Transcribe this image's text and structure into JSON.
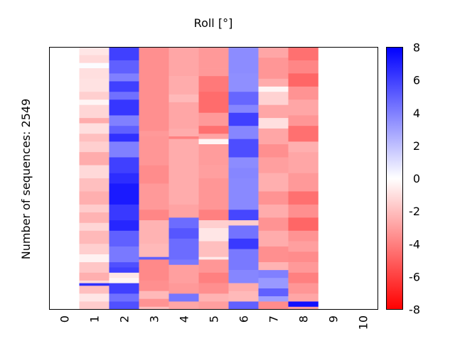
{
  "chart_data": {
    "type": "heatmap",
    "title": "Roll [°]",
    "xlabel": "",
    "ylabel": "Number of sequences: 2549",
    "x_ticks": [
      "0",
      "1",
      "2",
      "3",
      "4",
      "5",
      "6",
      "7",
      "8",
      "9",
      "10"
    ],
    "xlim": [
      -0.5,
      10.5
    ],
    "n_sequences": 2549,
    "colorbar": {
      "colormap": "bwr_reversed",
      "vmin": -8,
      "vmax": 8,
      "ticks": [
        "8",
        "6",
        "4",
        "2",
        "0",
        "-2",
        "-4",
        "-6",
        "-8"
      ],
      "color_low": "#ff0000",
      "color_mid": "#ffffff",
      "color_high": "#0000ff"
    },
    "columns": [
      {
        "x": 1,
        "bands": [
          [
            0.0,
            0.03,
            -0.8
          ],
          [
            0.03,
            0.06,
            -1.2
          ],
          [
            0.06,
            0.08,
            0.1
          ],
          [
            0.08,
            0.12,
            -1.0
          ],
          [
            0.12,
            0.17,
            -0.9
          ],
          [
            0.17,
            0.2,
            -1.5
          ],
          [
            0.2,
            0.22,
            -0.3
          ],
          [
            0.22,
            0.27,
            -1.3
          ],
          [
            0.27,
            0.29,
            -2.6
          ],
          [
            0.29,
            0.33,
            -1.0
          ],
          [
            0.33,
            0.36,
            -2.0
          ],
          [
            0.36,
            0.4,
            -1.5
          ],
          [
            0.4,
            0.45,
            -2.6
          ],
          [
            0.45,
            0.5,
            -1.2
          ],
          [
            0.5,
            0.55,
            -2.0
          ],
          [
            0.55,
            0.6,
            -2.5
          ],
          [
            0.6,
            0.63,
            -1.6
          ],
          [
            0.63,
            0.67,
            -2.4
          ],
          [
            0.67,
            0.7,
            -1.3
          ],
          [
            0.7,
            0.75,
            -2.2
          ],
          [
            0.75,
            0.79,
            -1.5
          ],
          [
            0.79,
            0.82,
            -0.4
          ],
          [
            0.82,
            0.86,
            -1.8
          ],
          [
            0.86,
            0.89,
            -2.5
          ],
          [
            0.89,
            0.9,
            -1.2
          ],
          [
            0.9,
            0.91,
            6.5
          ],
          [
            0.91,
            0.94,
            -2.0
          ],
          [
            0.94,
            0.97,
            -0.8
          ],
          [
            0.97,
            1.0,
            -1.6
          ]
        ]
      },
      {
        "x": 2,
        "bands": [
          [
            0.0,
            0.05,
            6.0
          ],
          [
            0.05,
            0.1,
            5.0
          ],
          [
            0.1,
            0.13,
            4.0
          ],
          [
            0.13,
            0.17,
            6.0
          ],
          [
            0.17,
            0.2,
            4.5
          ],
          [
            0.2,
            0.26,
            6.3
          ],
          [
            0.26,
            0.3,
            4.0
          ],
          [
            0.3,
            0.33,
            5.0
          ],
          [
            0.33,
            0.36,
            6.5
          ],
          [
            0.36,
            0.42,
            4.0
          ],
          [
            0.42,
            0.48,
            6.0
          ],
          [
            0.48,
            0.52,
            6.6
          ],
          [
            0.52,
            0.6,
            7.2
          ],
          [
            0.6,
            0.66,
            6.2
          ],
          [
            0.66,
            0.7,
            6.8
          ],
          [
            0.7,
            0.76,
            5.0
          ],
          [
            0.76,
            0.82,
            4.2
          ],
          [
            0.82,
            0.84,
            5.5
          ],
          [
            0.84,
            0.86,
            6.0
          ],
          [
            0.86,
            0.88,
            -0.8
          ],
          [
            0.88,
            0.9,
            -0.3
          ],
          [
            0.9,
            0.94,
            6.0
          ],
          [
            0.94,
            0.97,
            4.5
          ],
          [
            0.97,
            1.0,
            5.5
          ]
        ]
      },
      {
        "x": 3,
        "bands": [
          [
            0.0,
            0.32,
            -3.5
          ],
          [
            0.32,
            0.34,
            -3.2
          ],
          [
            0.34,
            0.45,
            -3.3
          ],
          [
            0.45,
            0.52,
            -3.6
          ],
          [
            0.52,
            0.62,
            -3.2
          ],
          [
            0.62,
            0.66,
            -3.8
          ],
          [
            0.66,
            0.75,
            -2.4
          ],
          [
            0.75,
            0.8,
            -2.2
          ],
          [
            0.8,
            0.81,
            5.0
          ],
          [
            0.81,
            0.89,
            -3.7
          ],
          [
            0.89,
            0.93,
            -3.5
          ],
          [
            0.93,
            0.96,
            -2.2
          ],
          [
            0.96,
            0.99,
            -3.4
          ],
          [
            0.99,
            1.0,
            -2.0
          ]
        ]
      },
      {
        "x": 4,
        "bands": [
          [
            0.0,
            0.11,
            -2.8
          ],
          [
            0.11,
            0.18,
            -2.6
          ],
          [
            0.18,
            0.21,
            -2.2
          ],
          [
            0.21,
            0.31,
            -2.8
          ],
          [
            0.31,
            0.34,
            -2.6
          ],
          [
            0.34,
            0.35,
            -4.0
          ],
          [
            0.35,
            0.6,
            -2.6
          ],
          [
            0.6,
            0.65,
            -2.9
          ],
          [
            0.65,
            0.69,
            4.6
          ],
          [
            0.69,
            0.73,
            5.3
          ],
          [
            0.73,
            0.81,
            4.6
          ],
          [
            0.81,
            0.83,
            4.2
          ],
          [
            0.83,
            0.9,
            -3.0
          ],
          [
            0.9,
            0.94,
            -3.2
          ],
          [
            0.94,
            0.97,
            4.3
          ],
          [
            0.97,
            1.0,
            -2.8
          ]
        ]
      },
      {
        "x": 5,
        "bands": [
          [
            0.0,
            0.08,
            -3.2
          ],
          [
            0.08,
            0.11,
            -3.2
          ],
          [
            0.11,
            0.17,
            -4.2
          ],
          [
            0.17,
            0.25,
            -4.6
          ],
          [
            0.25,
            0.3,
            -3.2
          ],
          [
            0.3,
            0.33,
            -4.5
          ],
          [
            0.33,
            0.35,
            -2.9
          ],
          [
            0.35,
            0.37,
            -0.3
          ],
          [
            0.37,
            0.45,
            -3.1
          ],
          [
            0.45,
            0.5,
            -3.0
          ],
          [
            0.5,
            0.62,
            -3.3
          ],
          [
            0.62,
            0.66,
            -4.0
          ],
          [
            0.66,
            0.69,
            -1.5
          ],
          [
            0.69,
            0.74,
            -0.8
          ],
          [
            0.74,
            0.8,
            -2.0
          ],
          [
            0.8,
            0.81,
            -0.7
          ],
          [
            0.81,
            0.86,
            -3.3
          ],
          [
            0.86,
            0.9,
            -4.0
          ],
          [
            0.9,
            0.94,
            -3.5
          ],
          [
            0.94,
            0.97,
            -2.4
          ],
          [
            0.97,
            1.0,
            -3.0
          ]
        ]
      },
      {
        "x": 6,
        "bands": [
          [
            0.0,
            0.1,
            3.6
          ],
          [
            0.1,
            0.17,
            3.5
          ],
          [
            0.17,
            0.22,
            4.8
          ],
          [
            0.22,
            0.25,
            3.8
          ],
          [
            0.25,
            0.3,
            6.0
          ],
          [
            0.3,
            0.35,
            3.8
          ],
          [
            0.35,
            0.42,
            5.6
          ],
          [
            0.42,
            0.46,
            3.6
          ],
          [
            0.46,
            0.5,
            3.8
          ],
          [
            0.5,
            0.62,
            3.7
          ],
          [
            0.62,
            0.66,
            5.8
          ],
          [
            0.66,
            0.68,
            -1.6
          ],
          [
            0.68,
            0.73,
            4.4
          ],
          [
            0.73,
            0.77,
            6.2
          ],
          [
            0.77,
            0.85,
            4.2
          ],
          [
            0.85,
            0.9,
            3.8
          ],
          [
            0.9,
            0.93,
            -2.6
          ],
          [
            0.93,
            0.97,
            -2.2
          ],
          [
            0.97,
            1.0,
            5.0
          ]
        ]
      },
      {
        "x": 7,
        "bands": [
          [
            0.0,
            0.04,
            -2.8
          ],
          [
            0.04,
            0.12,
            -3.3
          ],
          [
            0.12,
            0.15,
            -2.6
          ],
          [
            0.15,
            0.17,
            -0.3
          ],
          [
            0.17,
            0.22,
            -1.4
          ],
          [
            0.22,
            0.27,
            -2.8
          ],
          [
            0.27,
            0.31,
            -1.0
          ],
          [
            0.31,
            0.37,
            -2.8
          ],
          [
            0.37,
            0.42,
            -3.5
          ],
          [
            0.42,
            0.48,
            -3.0
          ],
          [
            0.48,
            0.55,
            -2.5
          ],
          [
            0.55,
            0.6,
            -3.4
          ],
          [
            0.6,
            0.65,
            -2.6
          ],
          [
            0.65,
            0.7,
            -3.4
          ],
          [
            0.7,
            0.76,
            -2.6
          ],
          [
            0.76,
            0.82,
            -3.5
          ],
          [
            0.82,
            0.85,
            -2.4
          ],
          [
            0.85,
            0.88,
            4.0
          ],
          [
            0.88,
            0.92,
            3.2
          ],
          [
            0.92,
            0.95,
            5.0
          ],
          [
            0.95,
            0.97,
            3.0
          ],
          [
            0.97,
            1.0,
            -3.6
          ]
        ]
      },
      {
        "x": 8,
        "bands": [
          [
            0.0,
            0.05,
            -4.5
          ],
          [
            0.05,
            0.1,
            -3.8
          ],
          [
            0.1,
            0.15,
            -4.8
          ],
          [
            0.15,
            0.2,
            -3.4
          ],
          [
            0.2,
            0.26,
            -2.8
          ],
          [
            0.26,
            0.3,
            -3.3
          ],
          [
            0.3,
            0.36,
            -4.5
          ],
          [
            0.36,
            0.4,
            -2.5
          ],
          [
            0.4,
            0.48,
            -2.8
          ],
          [
            0.48,
            0.55,
            -3.2
          ],
          [
            0.55,
            0.6,
            -4.5
          ],
          [
            0.6,
            0.65,
            -3.5
          ],
          [
            0.65,
            0.7,
            -4.8
          ],
          [
            0.7,
            0.74,
            -3.4
          ],
          [
            0.74,
            0.78,
            -3.0
          ],
          [
            0.78,
            0.82,
            -3.6
          ],
          [
            0.82,
            0.86,
            -3.2
          ],
          [
            0.86,
            0.9,
            -4.0
          ],
          [
            0.9,
            0.94,
            -3.3
          ],
          [
            0.94,
            0.97,
            -2.8
          ],
          [
            0.97,
            0.99,
            7.5
          ],
          [
            0.99,
            1.0,
            -3.0
          ]
        ]
      }
    ]
  }
}
